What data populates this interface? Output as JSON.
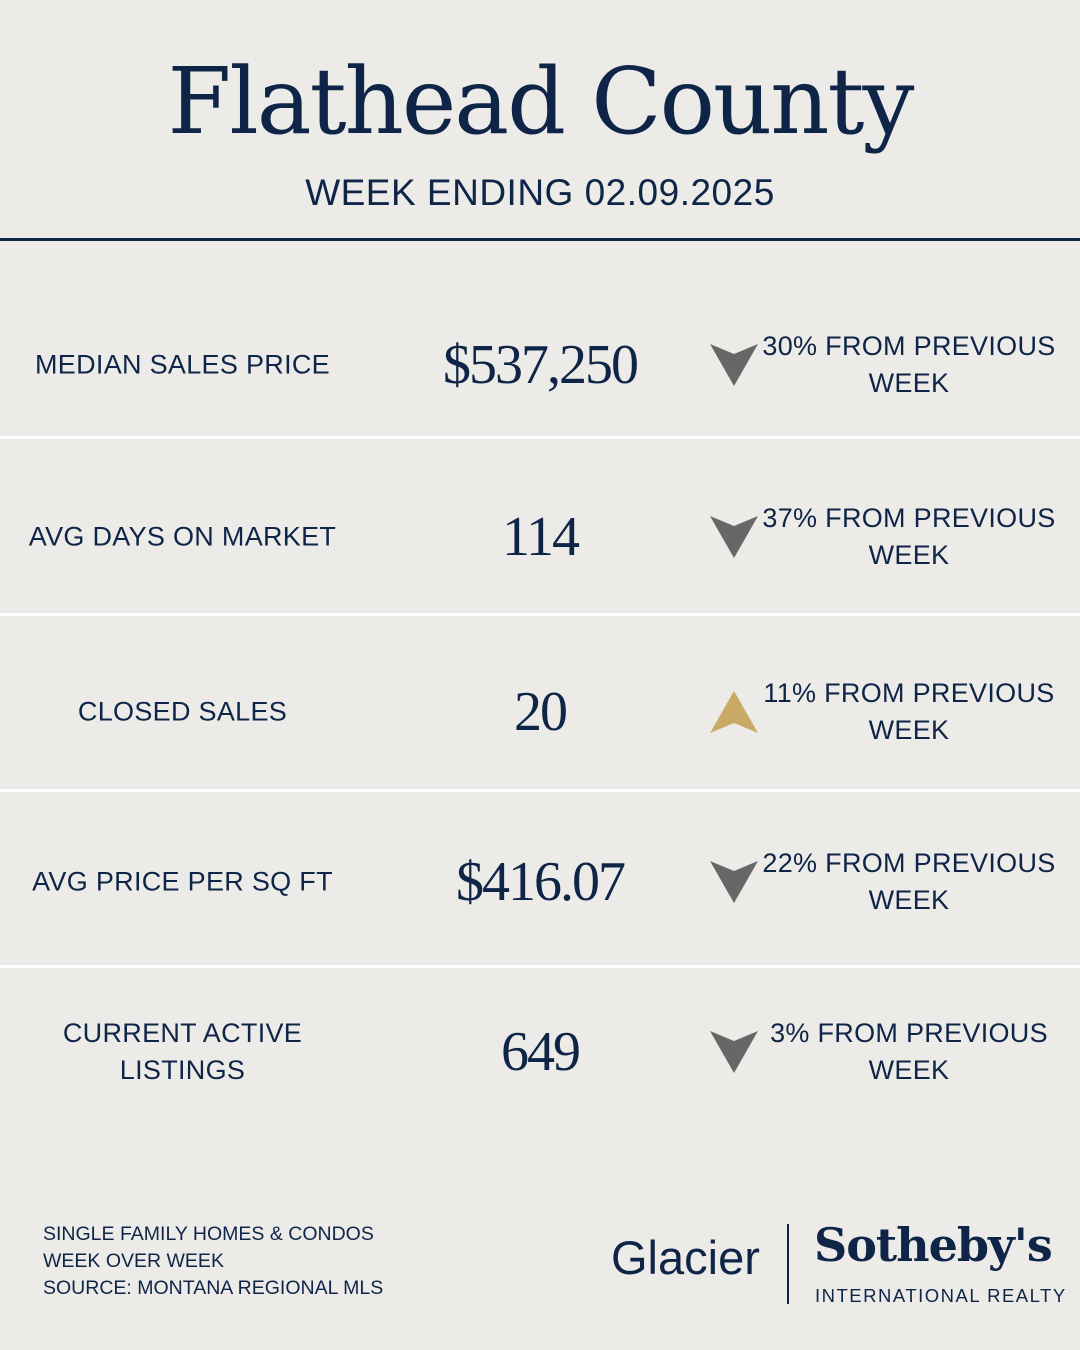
{
  "header": {
    "title": "Flathead County",
    "subtitle": "WEEK ENDING 02.09.2025"
  },
  "colors": {
    "navy": "#0f2548",
    "down_arrow": "#676767",
    "up_arrow": "#c8a965",
    "background": "#ecebe7"
  },
  "metrics": [
    {
      "label": "MEDIAN SALES PRICE",
      "value": "$537,250",
      "direction": "down",
      "change": "30% FROM PREVIOUS WEEK"
    },
    {
      "label": "AVG DAYS ON MARKET",
      "value": "114",
      "direction": "down",
      "change": "37% FROM PREVIOUS WEEK"
    },
    {
      "label": "CLOSED SALES",
      "value": "20",
      "direction": "up",
      "change": "11% FROM PREVIOUS WEEK"
    },
    {
      "label": "AVG PRICE PER SQ FT",
      "value": "$416.07",
      "direction": "down",
      "change": "22% FROM PREVIOUS WEEK"
    },
    {
      "label": "CURRENT ACTIVE LISTINGS",
      "value": "649",
      "direction": "down",
      "change": "3% FROM PREVIOUS WEEK"
    }
  ],
  "footer": {
    "notes": [
      "SINGLE FAMILY HOMES & CONDOS",
      "WEEK OVER WEEK",
      "SOURCE: MONTANA REGIONAL MLS"
    ]
  },
  "logo": {
    "glacier": "Glacier",
    "brand": "Sotheby's",
    "tagline": "INTERNATIONAL REALTY"
  }
}
